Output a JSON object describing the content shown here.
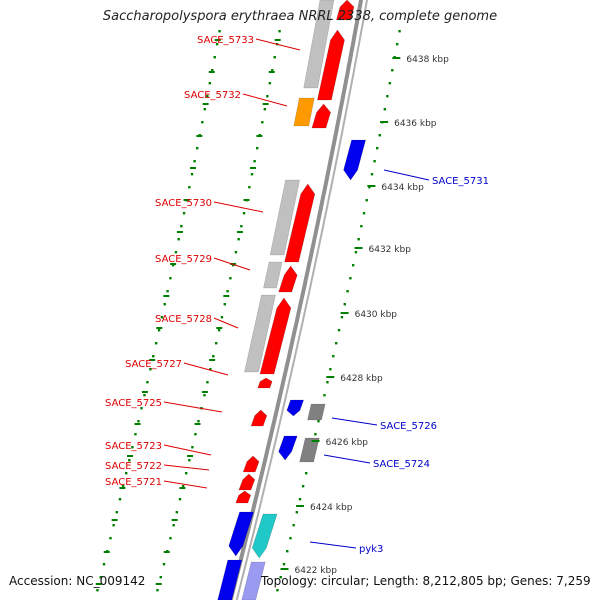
{
  "title": "Saccharopolyspora erythraea NRRL 2338, complete genome",
  "footer": {
    "accession": "Accession: NC_009142",
    "topology": "Topology: circular; Length: 8,212,805 bp; Genes: 7,259"
  },
  "colors": {
    "gene_red": "#ff0000",
    "gene_blue": "#0000ee",
    "gene_orange": "#ff9900",
    "gene_cyan": "#20c8c8",
    "gene_gray": "#c0c0c0",
    "gene_darkgray": "#808080",
    "gene_lavender": "#9a9af0",
    "ruler": "#008000",
    "backbone": "#909090",
    "label_red": "#dd0000",
    "label_blue": "#0000cc"
  },
  "scale_labels": [
    "6438 kbp",
    "6436 kbp",
    "6434 kbp",
    "6432 kbp",
    "6430 kbp",
    "6428 kbp",
    "6426 kbp",
    "6424 kbp",
    "6422 kbp"
  ],
  "gene_labels": {
    "left": [
      "SACE_5733",
      "SACE_5732",
      "SACE_5730",
      "SACE_5729",
      "SACE_5728",
      "SACE_5727",
      "SACE_5725",
      "SACE_5723",
      "SACE_5722",
      "SACE_5721"
    ],
    "right": [
      "SACE_5731",
      "SACE_5726",
      "SACE_5724",
      "pyk3"
    ]
  }
}
